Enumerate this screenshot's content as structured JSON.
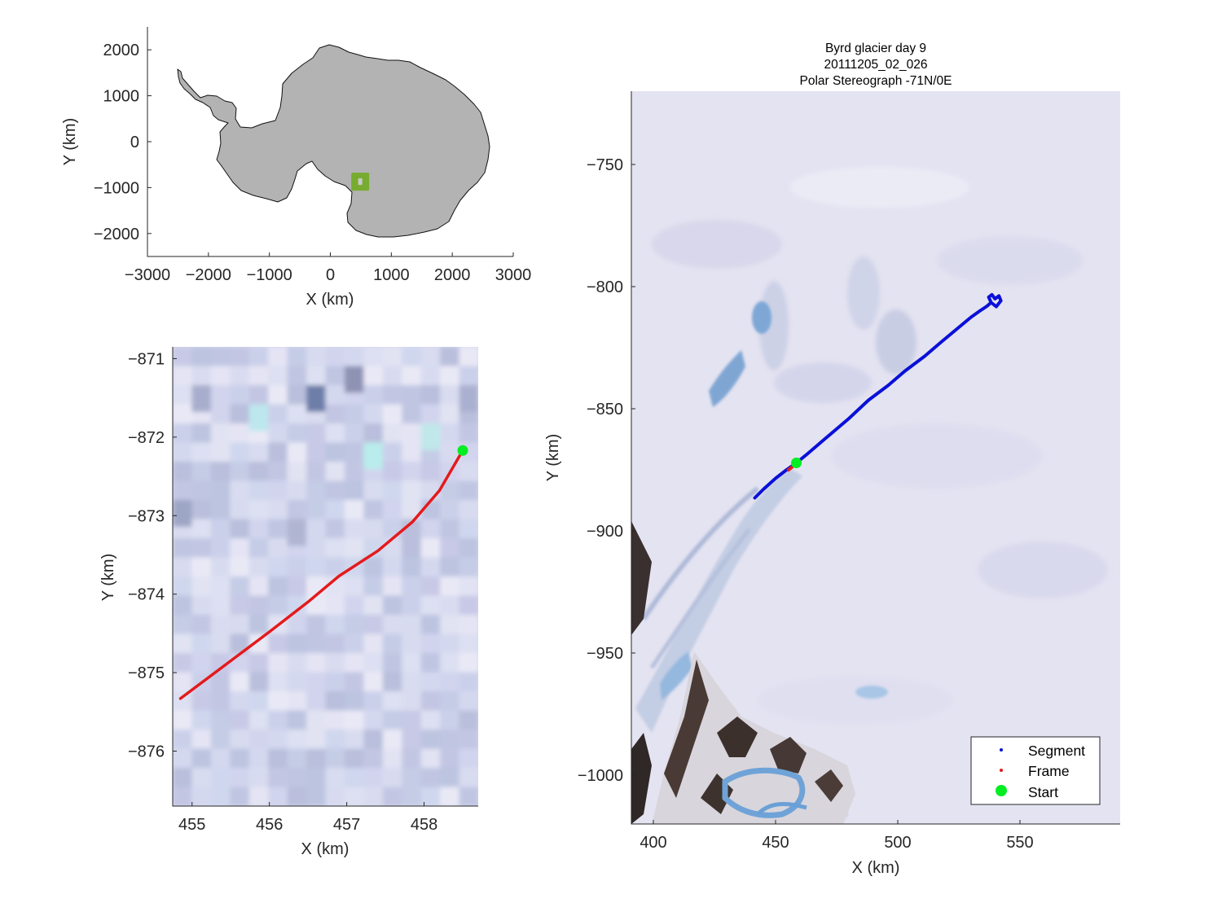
{
  "figure": {
    "title_lines": [
      "Byrd glacier day 9",
      "20111205_02_026",
      "Polar Stereograph -71N/0E"
    ]
  },
  "overview": {
    "xlabel": "X (km)",
    "ylabel": "Y (km)",
    "xticks": [
      -3000,
      -2000,
      -1000,
      0,
      1000,
      2000,
      3000
    ],
    "yticks": [
      2000,
      1000,
      0,
      -1000,
      -2000
    ],
    "xlim": [
      -3000,
      3000
    ],
    "ylim": [
      -2500,
      2500
    ],
    "highlight_center_km": [
      490,
      -870
    ],
    "land_color": "#b3b3b3",
    "highlight_color": "#77ac30"
  },
  "zoom": {
    "xlabel": "X (km)",
    "ylabel": "Y (km)",
    "xticks": [
      455,
      456,
      457,
      458
    ],
    "yticks": [
      -871,
      -872,
      -873,
      -874,
      -875,
      -876
    ],
    "xlim": [
      454.75,
      458.7
    ],
    "ylim": [
      -876.7,
      -870.85
    ],
    "frame_line": [
      [
        454.85,
        -875.33
      ],
      [
        455.5,
        -874.85
      ],
      [
        456.0,
        -874.48
      ],
      [
        456.5,
        -874.1
      ],
      [
        456.9,
        -873.77
      ],
      [
        457.4,
        -873.45
      ],
      [
        457.85,
        -873.08
      ],
      [
        458.2,
        -872.68
      ],
      [
        458.5,
        -872.17
      ]
    ],
    "start_point": [
      458.5,
      -872.17
    ],
    "frame_color": "#e41a1c",
    "start_color": "#00ee22"
  },
  "main": {
    "xlabel": "X (km)",
    "ylabel": "Y (km)",
    "xticks": [
      400,
      450,
      500,
      550
    ],
    "yticks": [
      -750,
      -800,
      -850,
      -900,
      -950,
      -1000
    ],
    "xlim": [
      391,
      591
    ],
    "ylim": [
      -1020,
      -720
    ],
    "segment_line": [
      [
        441.5,
        -886.5
      ],
      [
        445.0,
        -883.0
      ],
      [
        450.0,
        -878.5
      ],
      [
        454.5,
        -875.0
      ],
      [
        458.5,
        -872.2
      ],
      [
        463.0,
        -868.5
      ],
      [
        470.0,
        -862.5
      ],
      [
        480.0,
        -854.0
      ],
      [
        488.0,
        -846.5
      ],
      [
        496.0,
        -840.5
      ],
      [
        503.0,
        -834.5
      ],
      [
        511.0,
        -828.5
      ],
      [
        518.0,
        -822.5
      ],
      [
        524.0,
        -817.5
      ],
      [
        530.0,
        -812.5
      ],
      [
        533.5,
        -810.0
      ],
      [
        536.5,
        -808.0
      ],
      [
        538.2,
        -806.5
      ],
      [
        537.2,
        -804.3
      ],
      [
        538.5,
        -803.3
      ],
      [
        539.8,
        -805.0
      ],
      [
        541.4,
        -803.8
      ],
      [
        542.2,
        -805.8
      ],
      [
        540.3,
        -808.2
      ],
      [
        538.2,
        -806.5
      ]
    ],
    "frame_line": [
      [
        454.85,
        -875.33
      ],
      [
        456.5,
        -874.1
      ],
      [
        458.5,
        -872.17
      ]
    ],
    "start_point": [
      458.5,
      -872.17
    ],
    "segment_color": "#0a10d8",
    "frame_color": "#e41a1c",
    "start_color": "#00ee22",
    "legend": [
      "Segment",
      "Frame",
      "Start"
    ]
  }
}
